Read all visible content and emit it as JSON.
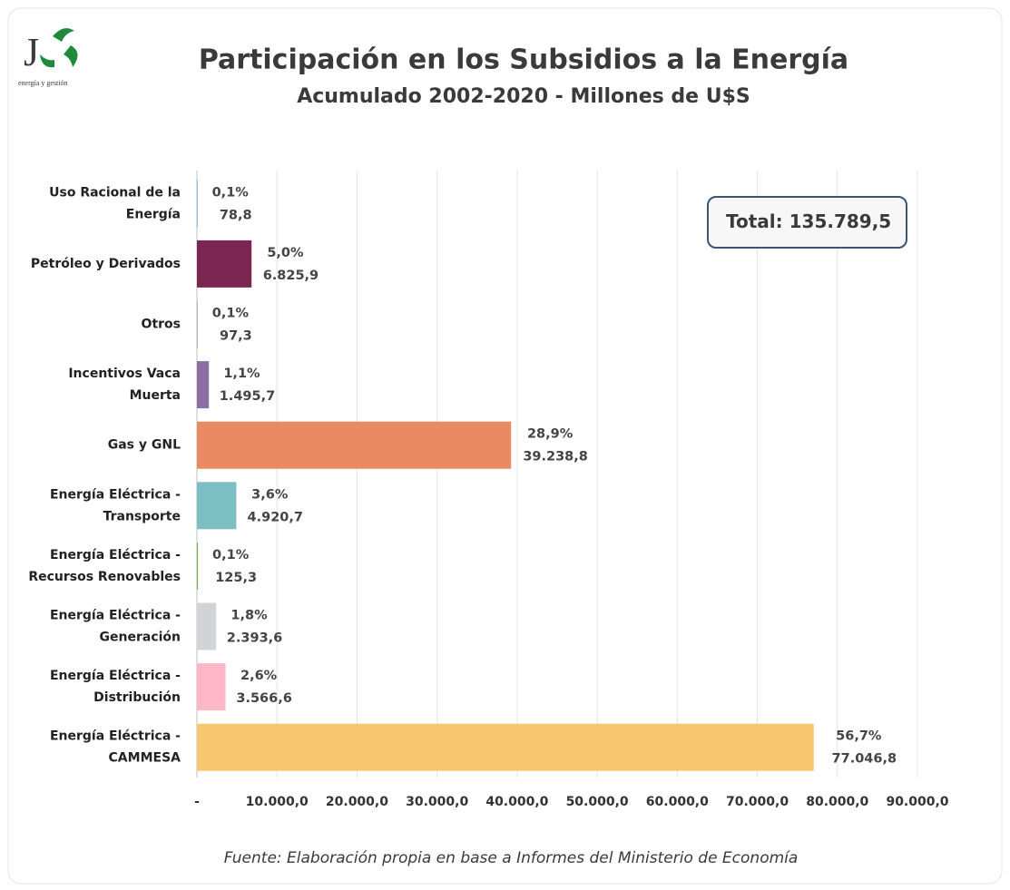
{
  "chart_data": {
    "type": "barh",
    "title": "Participación en los Subsidios a la Energía",
    "subtitle": "Acumulado 2002-2020 - Millones de U$S",
    "logo_letter": "J",
    "logo_caption": "energía y gestión",
    "categories": [
      [
        "Uso Racional de la",
        "Energía"
      ],
      [
        "Petróleo y Derivados"
      ],
      [
        "Otros"
      ],
      [
        "Incentivos Vaca",
        "Muerta"
      ],
      [
        "Gas y GNL"
      ],
      [
        "Energía Eléctrica -",
        "Transporte"
      ],
      [
        "Energía Eléctrica -",
        "Recursos Renovables"
      ],
      [
        "Energía Eléctrica -",
        "Generación"
      ],
      [
        "Energía Eléctrica -",
        "Distribución"
      ],
      [
        "Energía Eléctrica -",
        "CAMMESA"
      ]
    ],
    "values": [
      78.8,
      6825.9,
      97.3,
      1495.7,
      39238.8,
      4920.7,
      125.3,
      2393.6,
      3566.6,
      77046.8
    ],
    "value_labels": [
      "78,8",
      "6.825,9",
      "97,3",
      "1.495,7",
      "39.238,8",
      "4.920,7",
      "125,3",
      "2.393,6",
      "3.566,6",
      "77.046,8"
    ],
    "share_values": [
      0.1,
      5.0,
      0.1,
      1.1,
      28.9,
      3.6,
      0.1,
      1.8,
      2.6,
      56.7
    ],
    "share_labels": [
      "0,1%",
      "5,0%",
      "0,1%",
      "1,1%",
      "28,9%",
      "3,6%",
      "0,1%",
      "1,8%",
      "2,6%",
      "56,7%"
    ],
    "colors": [
      "#5b9bd5",
      "#7b2650",
      "#a5a5a5",
      "#8c6fa0",
      "#e98a63",
      "#7dbdc4",
      "#70ad47",
      "#d1d3d6",
      "#ffb6c6",
      "#f7c86d"
    ],
    "xlim": [
      0,
      90000
    ],
    "xticks": [
      {
        "value": 0,
        "label": "-"
      },
      {
        "value": 10000,
        "label": "10.000,0"
      },
      {
        "value": 20000,
        "label": "20.000,0"
      },
      {
        "value": 30000,
        "label": "30.000,0"
      },
      {
        "value": 40000,
        "label": "40.000,0"
      },
      {
        "value": 50000,
        "label": "50.000,0"
      },
      {
        "value": 60000,
        "label": "60.000,0"
      },
      {
        "value": 70000,
        "label": "70.000,0"
      },
      {
        "value": 80000,
        "label": "80.000,0"
      },
      {
        "value": 90000,
        "label": "90.000,0"
      }
    ],
    "grid": true,
    "total": {
      "label": "Total:",
      "value": 135789.5,
      "value_label": "135.789,5"
    },
    "source": "Fuente: Elaboración propia en base a Informes del Ministerio de Economía"
  }
}
